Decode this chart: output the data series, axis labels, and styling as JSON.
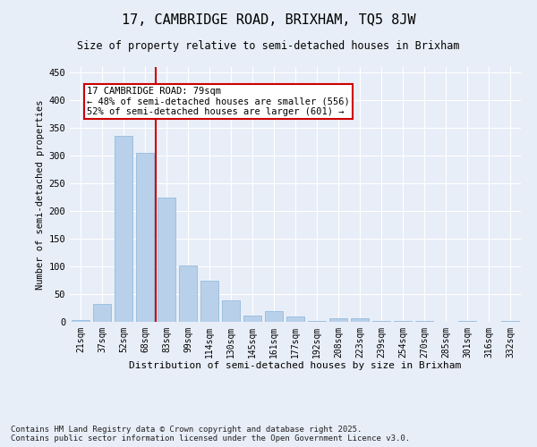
{
  "title_line1": "17, CAMBRIDGE ROAD, BRIXHAM, TQ5 8JW",
  "title_line2": "Size of property relative to semi-detached houses in Brixham",
  "xlabel": "Distribution of semi-detached houses by size in Brixham",
  "ylabel": "Number of semi-detached properties",
  "categories": [
    "21sqm",
    "37sqm",
    "52sqm",
    "68sqm",
    "83sqm",
    "99sqm",
    "114sqm",
    "130sqm",
    "145sqm",
    "161sqm",
    "177sqm",
    "192sqm",
    "208sqm",
    "223sqm",
    "239sqm",
    "254sqm",
    "270sqm",
    "285sqm",
    "301sqm",
    "316sqm",
    "332sqm"
  ],
  "values": [
    3,
    33,
    335,
    305,
    224,
    101,
    75,
    38,
    11,
    20,
    10,
    2,
    6,
    7,
    1,
    1,
    1,
    0,
    1,
    0,
    1
  ],
  "bar_color": "#b8d0ea",
  "bar_edge_color": "#8ab4d8",
  "vline_color": "#cc0000",
  "annotation_box_color": "#cc0000",
  "background_color": "#e8eef8",
  "grid_color": "#ffffff",
  "ylim": [
    0,
    460
  ],
  "yticks": [
    0,
    50,
    100,
    150,
    200,
    250,
    300,
    350,
    400,
    450
  ],
  "footnote_line1": "Contains HM Land Registry data © Crown copyright and database right 2025.",
  "footnote_line2": "Contains public sector information licensed under the Open Government Licence v3.0.",
  "annotation_title": "17 CAMBRIDGE ROAD: 79sqm",
  "annotation_line1": "← 48% of semi-detached houses are smaller (556)",
  "annotation_line2": "52% of semi-detached houses are larger (601) →"
}
